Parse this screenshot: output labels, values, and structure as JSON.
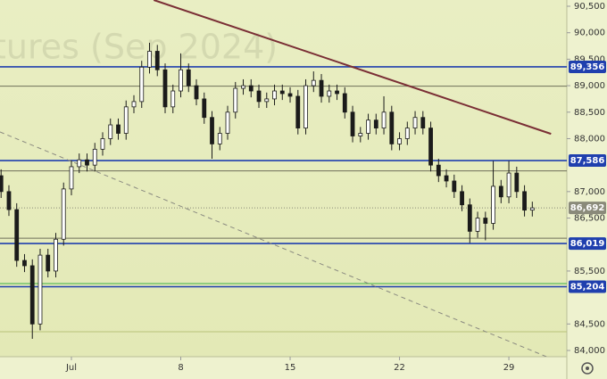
{
  "chart_data": {
    "type": "candlestick",
    "watermark": "tures (Sep 2024)",
    "xlim": [
      -3.57,
      32.71
    ],
    "ylim": [
      83882,
      90618
    ],
    "xticks": [
      {
        "value": 1,
        "label": "Jul"
      },
      8,
      15,
      22,
      29
    ],
    "yticks": [
      {
        "value": 84000,
        "label": "84,000"
      },
      {
        "value": 84500,
        "label": "84,500"
      },
      {
        "value": 85500,
        "label": "85,500"
      },
      {
        "value": 86500,
        "label": "86,500"
      },
      {
        "value": 87000,
        "label": "87,000"
      },
      {
        "value": 88000,
        "label": "88,000"
      },
      {
        "value": 88500,
        "label": "88,500"
      },
      {
        "value": 89000,
        "label": "89,000"
      },
      {
        "value": 89500,
        "label": "89,500"
      },
      {
        "value": 90000,
        "label": "90,000"
      },
      {
        "value": 90500,
        "label": "90,500"
      }
    ],
    "x": [
      -3.5,
      -3,
      -2.5,
      -2,
      -1.5,
      -1,
      -0.5,
      0,
      0.5,
      1,
      1.5,
      2,
      2.5,
      3,
      3.5,
      4,
      4.5,
      5,
      5.5,
      6,
      6.5,
      7,
      7.5,
      8,
      8.5,
      9,
      9.5,
      10,
      10.5,
      11,
      11.5,
      12,
      12.5,
      13,
      13.5,
      14,
      14.5,
      15,
      15.5,
      16,
      16.5,
      17,
      17.5,
      18,
      18.5,
      19,
      19.5,
      20,
      20.5,
      21,
      21.5,
      22,
      22.5,
      23,
      23.5,
      24,
      24.5,
      25,
      25.5,
      26,
      26.5,
      27,
      27.5,
      28,
      28.5,
      29,
      29.5,
      30,
      30.5
    ],
    "open": [
      87300,
      87000,
      86660,
      85700,
      85600,
      84500,
      85800,
      85500,
      86100,
      87050,
      87470,
      87600,
      87500,
      87800,
      88000,
      88260,
      88100,
      88600,
      88700,
      89350,
      89650,
      89300,
      88600,
      88900,
      89300,
      89000,
      88750,
      88400,
      87900,
      88100,
      88500,
      88950,
      89000,
      88900,
      88700,
      88750,
      88900,
      88850,
      88800,
      88200,
      89000,
      89100,
      88800,
      88900,
      88850,
      88500,
      88050,
      88100,
      88350,
      88200,
      88500,
      87900,
      88000,
      88200,
      88400,
      88200,
      87500,
      87300,
      87200,
      87000,
      86750,
      86250,
      86500,
      86400,
      87100,
      86900,
      87350,
      87000,
      86650
    ],
    "high": [
      87420,
      87120,
      86780,
      85820,
      85720,
      85920,
      85920,
      86220,
      87170,
      87590,
      87720,
      87720,
      87920,
      88120,
      88380,
      88380,
      88720,
      88820,
      89470,
      89810,
      89770,
      89420,
      89020,
      89610,
      89420,
      89120,
      88870,
      88520,
      88220,
      88620,
      89070,
      89120,
      89120,
      89020,
      88870,
      89020,
      89020,
      88970,
      88920,
      89120,
      89270,
      89220,
      89020,
      89020,
      88970,
      88620,
      88220,
      88470,
      88470,
      88800,
      88620,
      88120,
      88320,
      88520,
      88520,
      88320,
      87620,
      87420,
      87320,
      87120,
      86870,
      86620,
      86620,
      87580,
      87220,
      87580,
      87470,
      87120,
      86810
    ],
    "low": [
      86880,
      86540,
      85580,
      85480,
      84220,
      84380,
      85380,
      85380,
      85980,
      86930,
      87350,
      87380,
      87380,
      87680,
      87880,
      87980,
      87980,
      88480,
      88580,
      89230,
      89180,
      88480,
      88480,
      88780,
      88880,
      88630,
      88280,
      87620,
      87780,
      87980,
      88380,
      88830,
      88780,
      88580,
      88580,
      88630,
      88730,
      88680,
      88080,
      88080,
      88880,
      88680,
      88680,
      88730,
      88380,
      87930,
      87930,
      87980,
      88080,
      88080,
      87780,
      87780,
      87880,
      88080,
      88080,
      87380,
      87180,
      87080,
      86880,
      86630,
      86030,
      86130,
      86080,
      86280,
      86780,
      86780,
      86880,
      86530,
      86530
    ],
    "close": [
      87000,
      86660,
      85700,
      85600,
      84500,
      85800,
      85500,
      86100,
      87050,
      87470,
      87600,
      87500,
      87800,
      88000,
      88260,
      88100,
      88600,
      88700,
      89350,
      89650,
      89300,
      88600,
      88900,
      89300,
      89000,
      88750,
      88400,
      87900,
      88100,
      88500,
      88950,
      89000,
      88900,
      88700,
      88750,
      88900,
      88850,
      88800,
      88200,
      89000,
      89100,
      88800,
      88900,
      88850,
      88500,
      88050,
      88100,
      88350,
      88200,
      88500,
      87900,
      88000,
      88200,
      88400,
      88200,
      87500,
      87300,
      87200,
      87000,
      86750,
      86250,
      86500,
      86400,
      87100,
      86900,
      87350,
      87000,
      86650,
      86692
    ],
    "up_color": "#ffffff",
    "down_color": "#1b1b1b",
    "wick_color": "#1b1b1b",
    "levels": [
      {
        "value": 88990,
        "color": "#6f6f5a"
      },
      {
        "value": 87390,
        "color": "#6f6f5a"
      },
      {
        "value": 86120,
        "color": "#6f6f5a"
      },
      {
        "value": 85263,
        "color": "#3cb043"
      },
      {
        "value": 84353,
        "color": "#b9c27a"
      },
      {
        "value": 89356,
        "label": "89,356",
        "color": "#1f3fae"
      },
      {
        "value": 87586,
        "label": "87,586",
        "color": "#1f3fae"
      },
      {
        "value": 86019,
        "label": "86,019",
        "color": "#1f3fae"
      },
      {
        "value": 85204,
        "label": "85,204",
        "color": "#1f3fae"
      }
    ],
    "last_price": {
      "value": 86692,
      "label": "86,692",
      "color": "#8a8a7a"
    },
    "trendlines": [
      {
        "x": [
          6.27,
          31.7
        ],
        "values": [
          90618,
          88090
        ],
        "color": "#7a2e35",
        "dashed": false
      },
      {
        "x": [
          -3.57,
          31.43
        ],
        "values": [
          88126,
          83880
        ],
        "color": "#8a8a80",
        "dashed": true
      }
    ]
  }
}
